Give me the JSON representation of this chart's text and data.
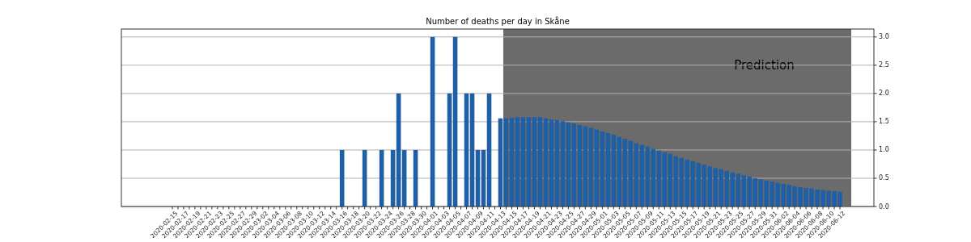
{
  "chart_data": {
    "type": "bar",
    "title": "Number of deaths per day in Skåne",
    "x": [
      "2020-03-16",
      "2020-03-20",
      "2020-03-23",
      "2020-03-25",
      "2020-03-26",
      "2020-03-27",
      "2020-03-29",
      "2020-04-01",
      "2020-04-04",
      "2020-04-05",
      "2020-04-07",
      "2020-04-08",
      "2020-04-09",
      "2020-04-10",
      "2020-04-11",
      "2020-04-13",
      "2020-04-14",
      "2020-04-15",
      "2020-04-16",
      "2020-04-17",
      "2020-04-18",
      "2020-04-19",
      "2020-04-20",
      "2020-04-21",
      "2020-04-22",
      "2020-04-23",
      "2020-04-24",
      "2020-04-25",
      "2020-04-26",
      "2020-04-27",
      "2020-04-28",
      "2020-04-29",
      "2020-04-30",
      "2020-05-01",
      "2020-05-02",
      "2020-05-03",
      "2020-05-04",
      "2020-05-05",
      "2020-05-06",
      "2020-05-07",
      "2020-05-08",
      "2020-05-09",
      "2020-05-10",
      "2020-05-11",
      "2020-05-12",
      "2020-05-13",
      "2020-05-14",
      "2020-05-15",
      "2020-05-16",
      "2020-05-17",
      "2020-05-18",
      "2020-05-19",
      "2020-05-20",
      "2020-05-21",
      "2020-05-22",
      "2020-05-23",
      "2020-05-24",
      "2020-05-25",
      "2020-05-26",
      "2020-05-27",
      "2020-05-28",
      "2020-05-29",
      "2020-05-30",
      "2020-05-31",
      "2020-06-01",
      "2020-06-02",
      "2020-06-03",
      "2020-06-04",
      "2020-06-05",
      "2020-06-06",
      "2020-06-07",
      "2020-06-08",
      "2020-06-09",
      "2020-06-10",
      "2020-06-11",
      "2020-06-12"
    ],
    "series": [
      {
        "color": "#1f5fa5",
        "values": [
          1,
          1,
          1,
          1,
          2,
          1,
          1,
          3,
          2,
          3,
          2,
          2,
          1,
          1,
          2,
          1.56,
          1.56,
          1.57,
          1.58,
          1.58,
          1.58,
          1.58,
          1.58,
          1.56,
          1.54,
          1.53,
          1.51,
          1.49,
          1.47,
          1.44,
          1.42,
          1.39,
          1.36,
          1.33,
          1.3,
          1.27,
          1.23,
          1.2,
          1.16,
          1.12,
          1.09,
          1.06,
          1.02,
          0.99,
          0.96,
          0.93,
          0.89,
          0.86,
          0.83,
          0.8,
          0.77,
          0.74,
          0.71,
          0.68,
          0.66,
          0.63,
          0.6,
          0.58,
          0.55,
          0.53,
          0.5,
          0.48,
          0.46,
          0.44,
          0.42,
          0.4,
          0.38,
          0.36,
          0.34,
          0.33,
          0.32,
          0.3,
          0.29,
          0.28,
          0.27,
          0.26
        ]
      }
    ],
    "xlim": [
      "2020-02-06",
      "2020-06-18"
    ],
    "xticks": [
      "2020-02-15",
      {
        "value": "2020-02-16",
        "label": null
      },
      "2020-02-17",
      {
        "value": "2020-02-18",
        "label": null
      },
      "2020-02-19",
      {
        "value": "2020-02-20",
        "label": null
      },
      "2020-02-21",
      {
        "value": "2020-02-22",
        "label": null
      },
      "2020-02-23",
      {
        "value": "2020-02-24",
        "label": null
      },
      "2020-02-25",
      {
        "value": "2020-02-26",
        "label": null
      },
      "2020-02-27",
      {
        "value": "2020-02-28",
        "label": null
      },
      "2020-02-29",
      {
        "value": "2020-03-01",
        "label": null
      },
      "2020-03-02",
      {
        "value": "2020-03-03",
        "label": null
      },
      "2020-03-04",
      {
        "value": "2020-03-05",
        "label": null
      },
      "2020-03-06",
      {
        "value": "2020-03-07",
        "label": null
      },
      "2020-03-08",
      {
        "value": "2020-03-09",
        "label": null
      },
      "2020-03-10",
      {
        "value": "2020-03-11",
        "label": null
      },
      "2020-03-12",
      {
        "value": "2020-03-13",
        "label": null
      },
      "2020-03-14",
      {
        "value": "2020-03-15",
        "label": null
      },
      "2020-03-16",
      {
        "value": "2020-03-17",
        "label": null
      },
      "2020-03-18",
      {
        "value": "2020-03-19",
        "label": null
      },
      "2020-03-20",
      {
        "value": "2020-03-21",
        "label": null
      },
      "2020-03-22",
      {
        "value": "2020-03-23",
        "label": null
      },
      "2020-03-24",
      {
        "value": "2020-03-25",
        "label": null
      },
      "2020-03-26",
      {
        "value": "2020-03-27",
        "label": null
      },
      "2020-03-28",
      {
        "value": "2020-03-29",
        "label": null
      },
      "2020-03-30",
      {
        "value": "2020-03-31",
        "label": null
      },
      "2020-04-01",
      {
        "value": "2020-04-02",
        "label": null
      },
      "2020-04-03",
      {
        "value": "2020-04-04",
        "label": null
      },
      "2020-04-05",
      {
        "value": "2020-04-06",
        "label": null
      },
      "2020-04-07",
      {
        "value": "2020-04-08",
        "label": null
      },
      "2020-04-09",
      {
        "value": "2020-04-10",
        "label": null
      },
      "2020-04-11",
      {
        "value": "2020-04-12",
        "label": null
      },
      "2020-04-13",
      {
        "value": "2020-04-14",
        "label": null
      },
      "2020-04-15",
      {
        "value": "2020-04-16",
        "label": null
      },
      "2020-04-17",
      {
        "value": "2020-04-18",
        "label": null
      },
      "2020-04-19",
      {
        "value": "2020-04-20",
        "label": null
      },
      "2020-04-21",
      {
        "value": "2020-04-22",
        "label": null
      },
      "2020-04-23",
      {
        "value": "2020-04-24",
        "label": null
      },
      "2020-04-25",
      {
        "value": "2020-04-26",
        "label": null
      },
      "2020-04-27",
      {
        "value": "2020-04-28",
        "label": null
      },
      "2020-04-29",
      {
        "value": "2020-04-30",
        "label": null
      },
      "2020-05-01",
      {
        "value": "2020-05-02",
        "label": null
      },
      "2020-05-03",
      {
        "value": "2020-05-04",
        "label": null
      },
      "2020-05-05",
      {
        "value": "2020-05-06",
        "label": null
      },
      "2020-05-07",
      {
        "value": "2020-05-08",
        "label": null
      },
      "2020-05-09",
      {
        "value": "2020-05-10",
        "label": null
      },
      "2020-05-11",
      {
        "value": "2020-05-12",
        "label": null
      },
      "2020-05-13",
      {
        "value": "2020-05-14",
        "label": null
      },
      "2020-05-15",
      {
        "value": "2020-05-16",
        "label": null
      },
      "2020-05-17",
      {
        "value": "2020-05-18",
        "label": null
      },
      "2020-05-19",
      {
        "value": "2020-05-20",
        "label": null
      },
      "2020-05-21",
      {
        "value": "2020-05-22",
        "label": null
      },
      "2020-05-23",
      {
        "value": "2020-05-24",
        "label": null
      },
      "2020-05-25",
      {
        "value": "2020-05-26",
        "label": null
      },
      "2020-05-27",
      {
        "value": "2020-05-28",
        "label": null
      },
      "2020-05-29",
      {
        "value": "2020-05-30",
        "label": null
      },
      "2020-05-31",
      {
        "value": "2020-06-01",
        "label": null
      },
      "2020-06-02",
      {
        "value": "2020-06-03",
        "label": null
      },
      "2020-06-04",
      {
        "value": "2020-06-05",
        "label": null
      },
      "2020-06-06",
      {
        "value": "2020-06-07",
        "label": null
      },
      "2020-06-08",
      {
        "value": "2020-06-09",
        "label": null
      },
      "2020-06-10",
      {
        "value": "2020-06-11",
        "label": null
      },
      "2020-06-12"
    ],
    "ylim": [
      0,
      3.14
    ],
    "yticks": [
      {
        "value": 0,
        "label": "0.0"
      },
      {
        "value": 0.5,
        "label": "0.5"
      },
      {
        "value": 1,
        "label": "1.0"
      },
      {
        "value": 1.5,
        "label": "1.5"
      },
      {
        "value": 2,
        "label": "2.0"
      },
      {
        "value": 2.5,
        "label": "2.5"
      },
      {
        "value": 3,
        "label": "3.0"
      }
    ],
    "grid": "y",
    "bands": [
      {
        "axis": "x",
        "from": "2020-04-13T12:00",
        "to": "2020-06-14",
        "color": "#6b6b6b",
        "label": "Prediction"
      }
    ]
  }
}
